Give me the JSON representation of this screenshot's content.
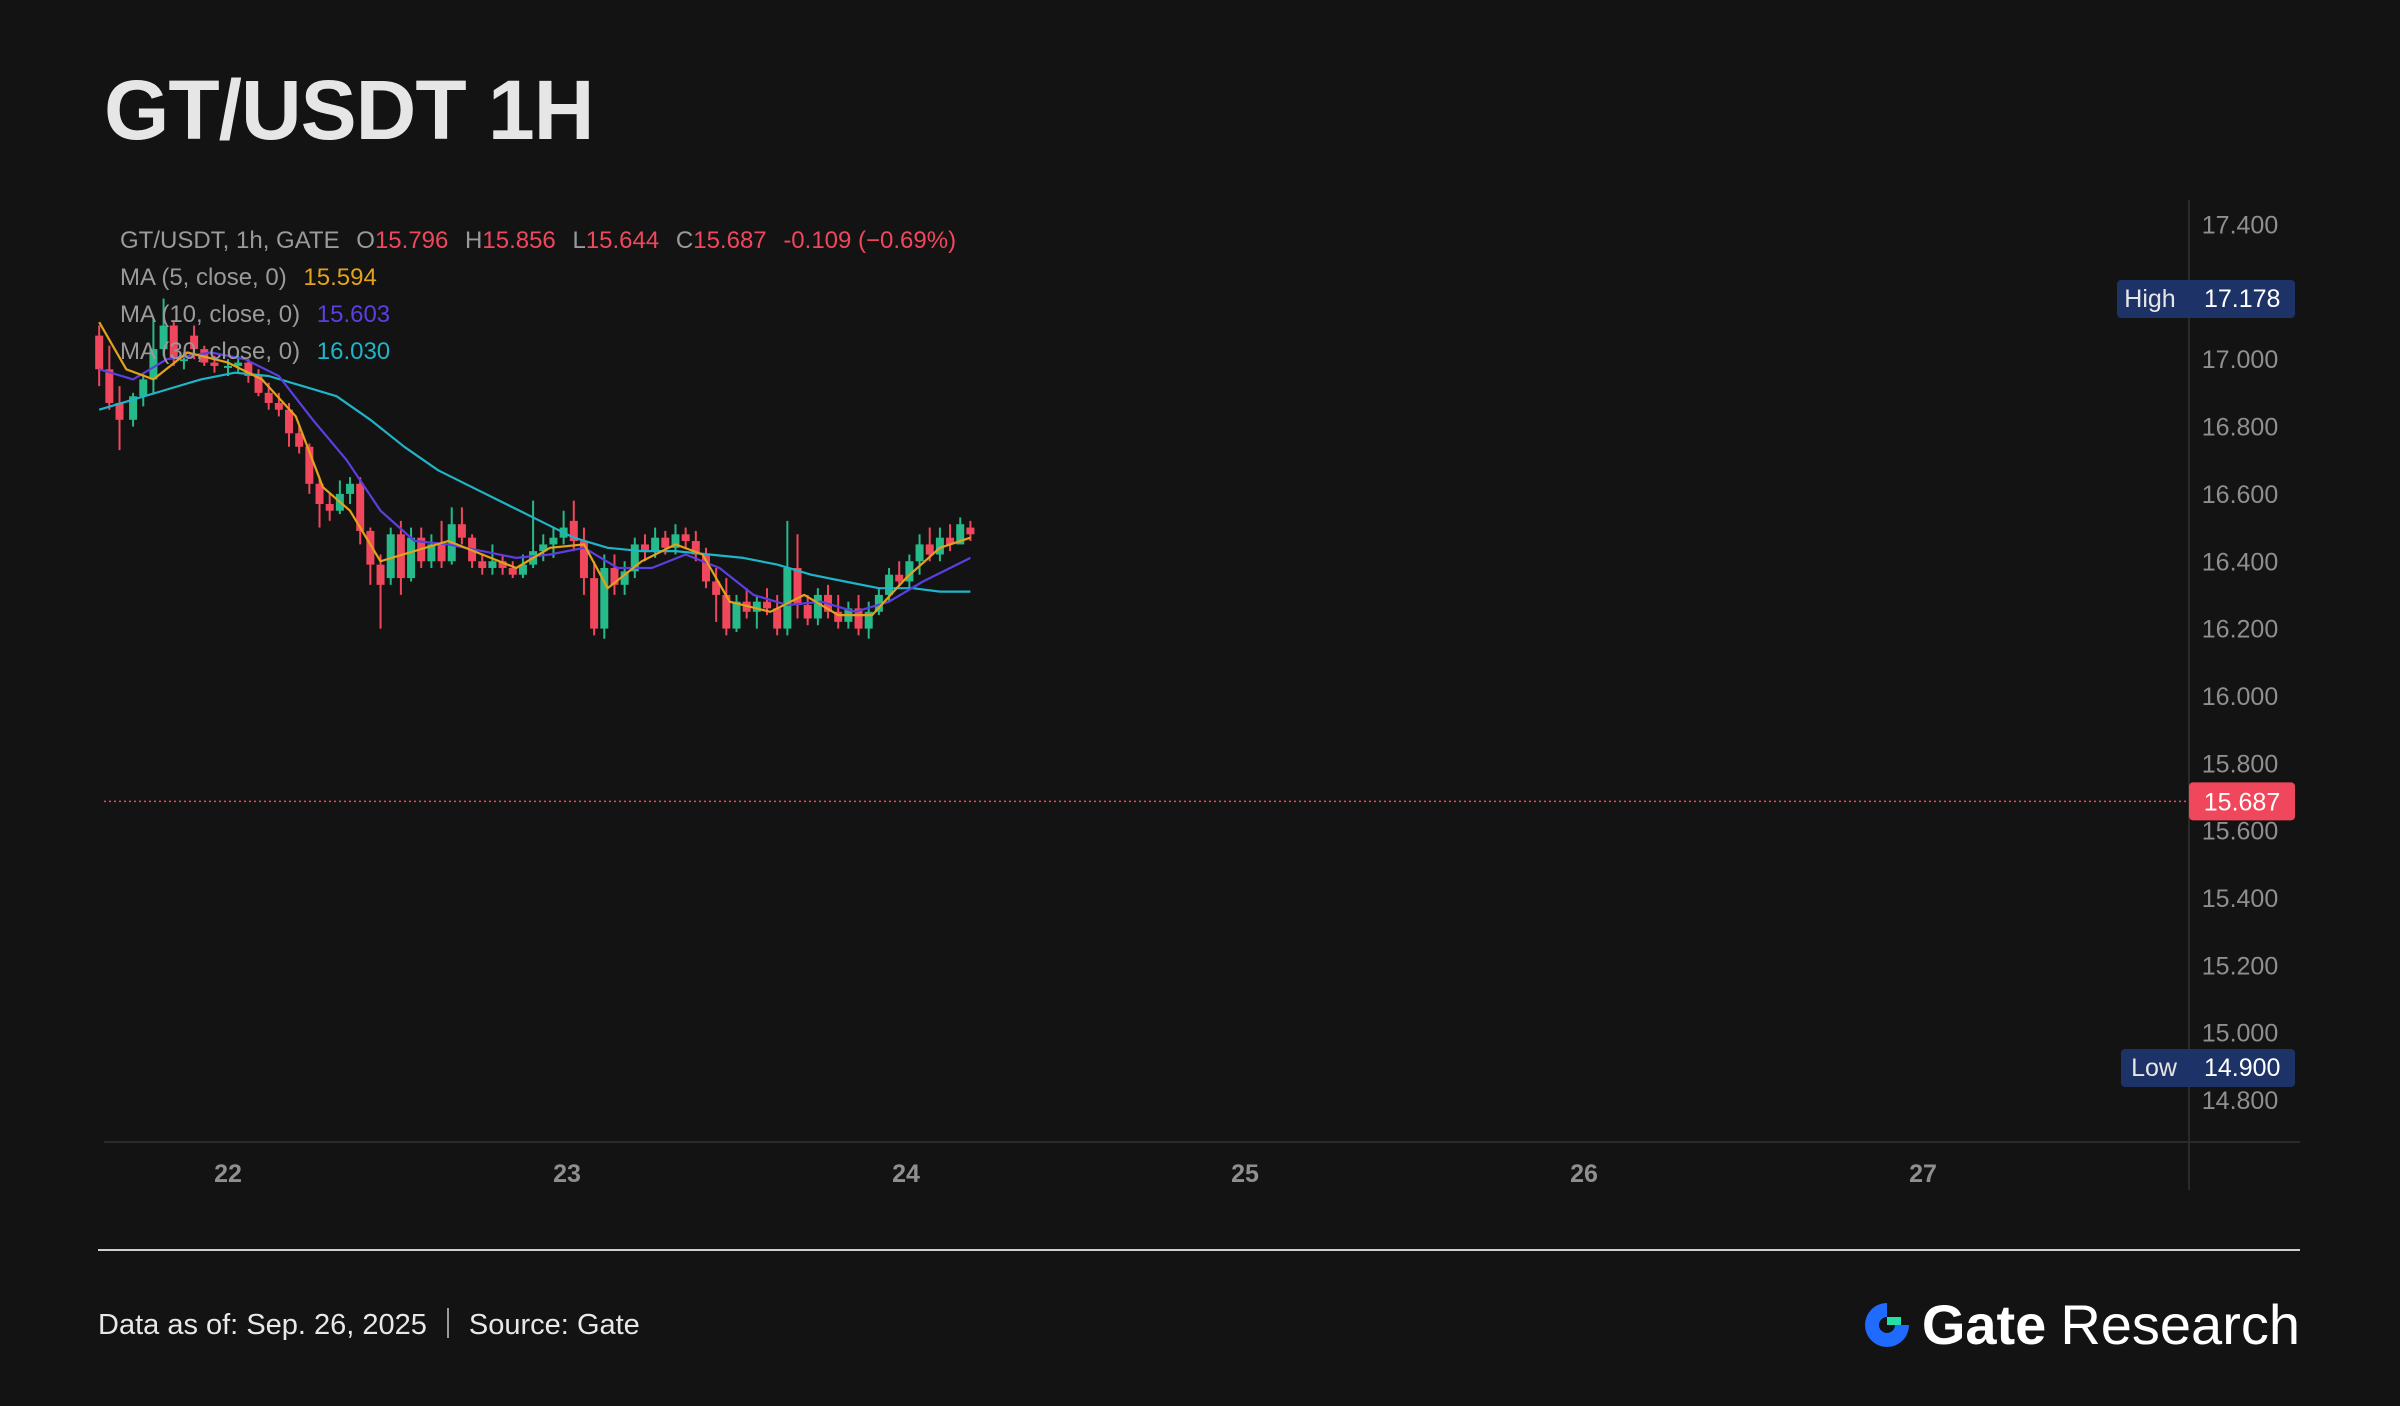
{
  "title": "GT/USDT 1H",
  "legend": {
    "symbol": "GT/USDT, 1h, GATE",
    "o_label": "O",
    "o_value": "15.796",
    "h_label": "H",
    "h_value": "15.856",
    "l_label": "L",
    "l_value": "15.644",
    "c_label": "C",
    "c_value": "15.687",
    "change": "-0.109 (−0.69%)",
    "ma5_label": "MA (5, close, 0)",
    "ma5_value": "15.594",
    "ma10_label": "MA (10, close, 0)",
    "ma10_value": "15.603",
    "ma30_label": "MA (30, close, 0)",
    "ma30_value": "16.030"
  },
  "colors": {
    "up": "#26b98a",
    "down": "#f0475c",
    "ma5": "#e3a21a",
    "ma10": "#5b3fe0",
    "ma30": "#1fb5c8",
    "tag_bg": "#1d3266",
    "last_price_bg": "#f0475c"
  },
  "footer": {
    "data_as_of_label": "Data as of:",
    "data_as_of_value": "Sep. 26, 2025",
    "source_label": "Source:",
    "source_value": "Gate",
    "brand_gate": "Gate",
    "brand_research": "Research",
    "brand_icon": "gate-logo-icon"
  },
  "chart_data": {
    "type": "candlestick",
    "interval": "1h",
    "y_axis": {
      "range": [
        14.75,
        17.45
      ],
      "ticks": [
        "17.400",
        "17.000",
        "16.800",
        "16.600",
        "16.400",
        "16.200",
        "16.000",
        "15.800",
        "15.600",
        "15.400",
        "15.200",
        "15.000",
        "14.800"
      ]
    },
    "x_axis": {
      "ticks": [
        "22",
        "23",
        "24",
        "25",
        "26",
        "27"
      ]
    },
    "high_tag": {
      "label": "High",
      "value": "17.178"
    },
    "low_tag": {
      "label": "Low",
      "value": "14.900"
    },
    "last_price": {
      "value": "15.687"
    },
    "candles": [
      [
        21.62,
        17.07,
        17.1,
        16.92,
        16.97
      ],
      [
        21.65,
        16.97,
        17.04,
        16.85,
        16.87
      ],
      [
        21.68,
        16.87,
        16.92,
        16.73,
        16.82
      ],
      [
        21.72,
        16.82,
        16.9,
        16.8,
        16.89
      ],
      [
        21.75,
        16.89,
        16.96,
        16.86,
        16.94
      ],
      [
        21.78,
        16.94,
        17.12,
        16.9,
        17.03
      ],
      [
        21.81,
        17.03,
        17.18,
        17.01,
        17.1
      ],
      [
        21.84,
        17.1,
        17.11,
        16.98,
        17.0
      ],
      [
        21.87,
        17.0,
        17.02,
        16.97,
        17.0
      ],
      [
        21.9,
        17.07,
        17.1,
        17.0,
        17.03
      ],
      [
        21.93,
        17.03,
        17.04,
        16.98,
        16.99
      ],
      [
        21.96,
        16.99,
        17.01,
        16.96,
        16.98
      ],
      [
        22.0,
        16.98,
        17.0,
        16.95,
        16.98
      ],
      [
        22.03,
        16.98,
        17.01,
        16.96,
        16.99
      ],
      [
        22.06,
        16.99,
        17.0,
        16.93,
        16.95
      ],
      [
        22.09,
        16.95,
        16.97,
        16.89,
        16.9
      ],
      [
        22.12,
        16.9,
        16.93,
        16.85,
        16.87
      ],
      [
        22.15,
        16.87,
        16.9,
        16.83,
        16.85
      ],
      [
        22.18,
        16.85,
        16.87,
        16.74,
        16.78
      ],
      [
        22.21,
        16.78,
        16.8,
        16.72,
        16.74
      ],
      [
        22.24,
        16.74,
        16.75,
        16.6,
        16.63
      ],
      [
        22.27,
        16.63,
        16.65,
        16.5,
        16.57
      ],
      [
        22.3,
        16.57,
        16.6,
        16.52,
        16.55
      ],
      [
        22.33,
        16.55,
        16.64,
        16.54,
        16.6
      ],
      [
        22.36,
        16.6,
        16.65,
        16.57,
        16.63
      ],
      [
        22.39,
        16.63,
        16.65,
        16.45,
        16.49
      ],
      [
        22.42,
        16.49,
        16.5,
        16.33,
        16.39
      ],
      [
        22.45,
        16.39,
        16.42,
        16.2,
        16.33
      ],
      [
        22.48,
        16.35,
        16.5,
        16.33,
        16.48
      ],
      [
        22.51,
        16.48,
        16.52,
        16.3,
        16.35
      ],
      [
        22.54,
        16.35,
        16.5,
        16.34,
        16.47
      ],
      [
        22.57,
        16.47,
        16.5,
        16.38,
        16.4
      ],
      [
        22.6,
        16.4,
        16.48,
        16.38,
        16.45
      ],
      [
        22.63,
        16.45,
        16.52,
        16.38,
        16.4
      ],
      [
        22.66,
        16.4,
        16.56,
        16.39,
        16.51
      ],
      [
        22.69,
        16.51,
        16.56,
        16.45,
        16.47
      ],
      [
        22.72,
        16.47,
        16.48,
        16.38,
        16.4
      ],
      [
        22.75,
        16.4,
        16.42,
        16.36,
        16.38
      ],
      [
        22.78,
        16.38,
        16.45,
        16.36,
        16.4
      ],
      [
        22.81,
        16.4,
        16.42,
        16.36,
        16.38
      ],
      [
        22.84,
        16.38,
        16.4,
        16.35,
        16.36
      ],
      [
        22.87,
        16.36,
        16.42,
        16.35,
        16.39
      ],
      [
        22.9,
        16.39,
        16.58,
        16.38,
        16.43
      ],
      [
        22.93,
        16.43,
        16.48,
        16.4,
        16.45
      ],
      [
        22.96,
        16.45,
        16.5,
        16.41,
        16.47
      ],
      [
        22.99,
        16.47,
        16.55,
        16.45,
        16.5
      ],
      [
        23.02,
        16.52,
        16.58,
        16.43,
        16.46
      ],
      [
        23.05,
        16.46,
        16.5,
        16.3,
        16.35
      ],
      [
        23.08,
        16.35,
        16.4,
        16.18,
        16.2
      ],
      [
        23.11,
        16.2,
        16.42,
        16.17,
        16.38
      ],
      [
        23.14,
        16.38,
        16.42,
        16.3,
        16.33
      ],
      [
        23.17,
        16.33,
        16.4,
        16.3,
        16.37
      ],
      [
        23.2,
        16.37,
        16.47,
        16.35,
        16.45
      ],
      [
        23.23,
        16.45,
        16.48,
        16.4,
        16.43
      ],
      [
        23.26,
        16.43,
        16.5,
        16.41,
        16.47
      ],
      [
        23.29,
        16.47,
        16.49,
        16.42,
        16.44
      ],
      [
        23.32,
        16.44,
        16.51,
        16.42,
        16.48
      ],
      [
        23.35,
        16.48,
        16.5,
        16.44,
        16.46
      ],
      [
        23.38,
        16.46,
        16.49,
        16.4,
        16.42
      ],
      [
        23.41,
        16.42,
        16.44,
        16.32,
        16.34
      ],
      [
        23.44,
        16.34,
        16.38,
        16.22,
        16.3
      ],
      [
        23.47,
        16.3,
        16.35,
        16.18,
        16.2
      ],
      [
        23.5,
        16.2,
        16.3,
        16.19,
        16.28
      ],
      [
        23.53,
        16.28,
        16.32,
        16.23,
        16.25
      ],
      [
        23.56,
        16.25,
        16.3,
        16.2,
        16.28
      ],
      [
        23.59,
        16.28,
        16.32,
        16.24,
        16.26
      ],
      [
        23.62,
        16.26,
        16.3,
        16.18,
        16.2
      ],
      [
        23.65,
        16.2,
        16.52,
        16.18,
        16.38
      ],
      [
        23.68,
        16.38,
        16.48,
        16.23,
        16.27
      ],
      [
        23.71,
        16.27,
        16.3,
        16.21,
        16.23
      ],
      [
        23.74,
        16.23,
        16.32,
        16.21,
        16.3
      ],
      [
        23.77,
        16.3,
        16.33,
        16.23,
        16.25
      ],
      [
        23.8,
        16.25,
        16.3,
        16.2,
        16.22
      ],
      [
        23.83,
        16.22,
        16.28,
        16.2,
        16.26
      ],
      [
        23.86,
        16.26,
        16.3,
        16.18,
        16.2
      ],
      [
        23.89,
        16.2,
        16.28,
        16.17,
        16.25
      ],
      [
        23.92,
        16.25,
        16.32,
        16.24,
        16.3
      ],
      [
        23.95,
        16.3,
        16.38,
        16.28,
        16.36
      ],
      [
        23.98,
        16.36,
        16.4,
        16.33,
        16.34
      ],
      [
        24.01,
        16.34,
        16.42,
        16.32,
        16.4
      ],
      [
        24.04,
        16.4,
        16.48,
        16.36,
        16.45
      ],
      [
        24.07,
        16.45,
        16.5,
        16.4,
        16.42
      ],
      [
        24.1,
        16.42,
        16.5,
        16.4,
        16.47
      ],
      [
        24.13,
        16.47,
        16.51,
        16.43,
        16.45
      ],
      [
        24.16,
        16.45,
        16.53,
        16.45,
        16.51
      ],
      [
        24.19,
        16.5,
        16.52,
        16.46,
        16.48
      ]
    ],
    "ma5": [
      [
        21.62,
        17.11
      ],
      [
        21.7,
        16.97
      ],
      [
        21.78,
        16.94
      ],
      [
        21.88,
        17.02
      ],
      [
        22.0,
        16.99
      ],
      [
        22.1,
        16.94
      ],
      [
        22.2,
        16.83
      ],
      [
        22.28,
        16.62
      ],
      [
        22.36,
        16.55
      ],
      [
        22.45,
        16.4
      ],
      [
        22.55,
        16.43
      ],
      [
        22.65,
        16.46
      ],
      [
        22.75,
        16.42
      ],
      [
        22.85,
        16.38
      ],
      [
        22.95,
        16.44
      ],
      [
        23.05,
        16.45
      ],
      [
        23.12,
        16.32
      ],
      [
        23.22,
        16.4
      ],
      [
        23.32,
        16.45
      ],
      [
        23.4,
        16.42
      ],
      [
        23.48,
        16.28
      ],
      [
        23.6,
        16.25
      ],
      [
        23.7,
        16.3
      ],
      [
        23.8,
        16.24
      ],
      [
        23.9,
        16.24
      ],
      [
        24.0,
        16.35
      ],
      [
        24.1,
        16.44
      ],
      [
        24.19,
        16.47
      ]
    ],
    "ma10": [
      [
        21.62,
        16.97
      ],
      [
        21.72,
        16.94
      ],
      [
        21.82,
        17.0
      ],
      [
        21.95,
        17.02
      ],
      [
        22.05,
        17.0
      ],
      [
        22.15,
        16.95
      ],
      [
        22.25,
        16.82
      ],
      [
        22.35,
        16.7
      ],
      [
        22.45,
        16.55
      ],
      [
        22.55,
        16.46
      ],
      [
        22.65,
        16.45
      ],
      [
        22.75,
        16.43
      ],
      [
        22.85,
        16.41
      ],
      [
        22.95,
        16.42
      ],
      [
        23.05,
        16.44
      ],
      [
        23.15,
        16.38
      ],
      [
        23.25,
        16.38
      ],
      [
        23.35,
        16.42
      ],
      [
        23.45,
        16.38
      ],
      [
        23.55,
        16.3
      ],
      [
        23.65,
        16.27
      ],
      [
        23.75,
        16.28
      ],
      [
        23.85,
        16.25
      ],
      [
        23.95,
        16.28
      ],
      [
        24.05,
        16.34
      ],
      [
        24.19,
        16.41
      ]
    ],
    "ma30": [
      [
        21.62,
        16.85
      ],
      [
        21.72,
        16.88
      ],
      [
        21.82,
        16.91
      ],
      [
        21.92,
        16.94
      ],
      [
        22.02,
        16.96
      ],
      [
        22.12,
        16.95
      ],
      [
        22.22,
        16.92
      ],
      [
        22.32,
        16.89
      ],
      [
        22.42,
        16.82
      ],
      [
        22.52,
        16.74
      ],
      [
        22.62,
        16.67
      ],
      [
        22.72,
        16.62
      ],
      [
        22.82,
        16.57
      ],
      [
        22.92,
        16.52
      ],
      [
        23.02,
        16.47
      ],
      [
        23.12,
        16.44
      ],
      [
        23.22,
        16.43
      ],
      [
        23.32,
        16.43
      ],
      [
        23.42,
        16.42
      ],
      [
        23.52,
        16.41
      ],
      [
        23.62,
        16.39
      ],
      [
        23.72,
        16.36
      ],
      [
        23.82,
        16.34
      ],
      [
        23.92,
        16.32
      ],
      [
        24.02,
        16.32
      ],
      [
        24.1,
        16.31
      ],
      [
        24.19,
        16.31
      ]
    ]
  }
}
